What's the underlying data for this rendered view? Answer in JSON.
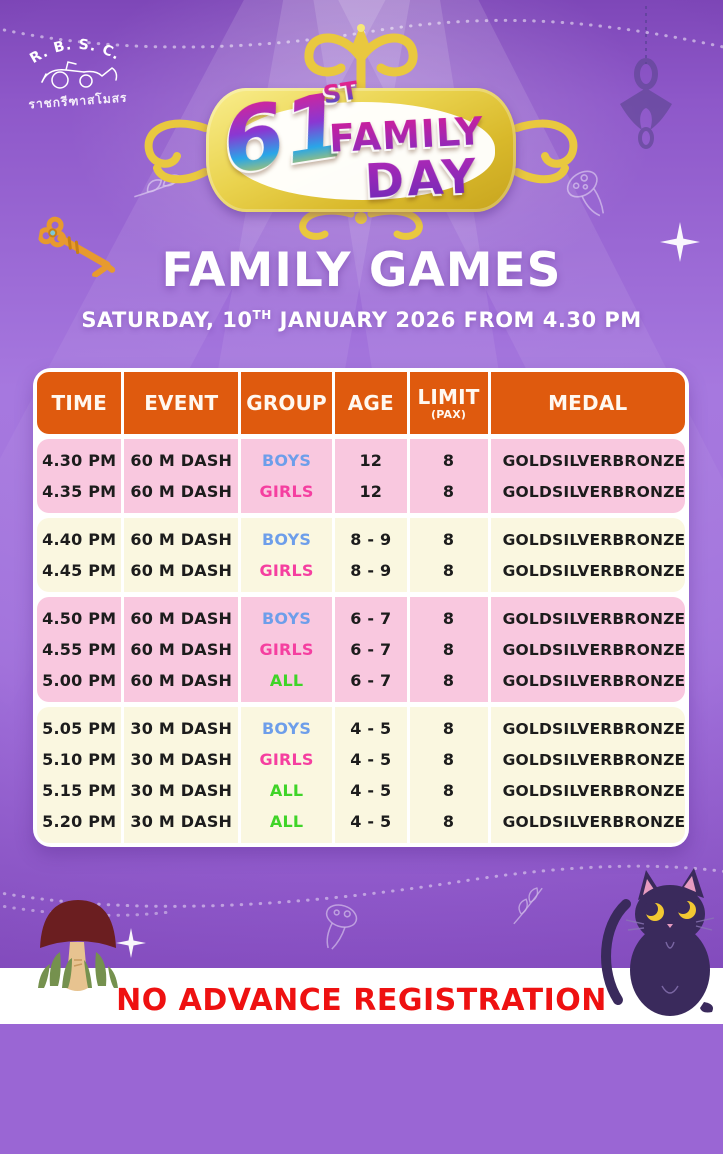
{
  "logo": {
    "acronym": "R. B. S. C.",
    "thai": "ราชกรีฑาสโมสร"
  },
  "banner": {
    "number": "61",
    "ordinal": "ST",
    "word1": "FAMILY",
    "word2": "DAY"
  },
  "header": {
    "title": "FAMILY GAMES",
    "date_prefix": "SATURDAY, 10",
    "date_sup": "TH",
    "date_suffix": " JANUARY 2026 FROM 4.30 PM"
  },
  "table": {
    "columns": [
      "TIME",
      "EVENT",
      "GROUP",
      "AGE",
      "LIMIT",
      "MEDAL"
    ],
    "limit_note": "(PAX)",
    "medals": [
      "GOLD",
      "SILVER",
      "BRONZE"
    ],
    "groups": [
      {
        "tone": "pink",
        "rows": [
          {
            "time": "4.30 PM",
            "event": "60 M DASH",
            "group": "BOYS",
            "group_class": "boys",
            "age": "12",
            "limit": "8"
          },
          {
            "time": "4.35 PM",
            "event": "60 M DASH",
            "group": "GIRLS",
            "group_class": "girls",
            "age": "12",
            "limit": "8"
          }
        ]
      },
      {
        "tone": "cream",
        "rows": [
          {
            "time": "4.40 PM",
            "event": "60 M DASH",
            "group": "BOYS",
            "group_class": "boys",
            "age": "8 - 9",
            "limit": "8"
          },
          {
            "time": "4.45 PM",
            "event": "60 M DASH",
            "group": "GIRLS",
            "group_class": "girls",
            "age": "8 - 9",
            "limit": "8"
          }
        ]
      },
      {
        "tone": "pink",
        "rows": [
          {
            "time": "4.50 PM",
            "event": "60 M DASH",
            "group": "BOYS",
            "group_class": "boys",
            "age": "6 - 7",
            "limit": "8"
          },
          {
            "time": "4.55 PM",
            "event": "60 M DASH",
            "group": "GIRLS",
            "group_class": "girls",
            "age": "6 - 7",
            "limit": "8"
          },
          {
            "time": "5.00 PM",
            "event": "60 M DASH",
            "group": "ALL",
            "group_class": "all",
            "age": "6 - 7",
            "limit": "8"
          }
        ]
      },
      {
        "tone": "cream",
        "rows": [
          {
            "time": "5.05 PM",
            "event": "30 M DASH",
            "group": "BOYS",
            "group_class": "boys",
            "age": "4 - 5",
            "limit": "8"
          },
          {
            "time": "5.10 PM",
            "event": "30 M DASH",
            "group": "GIRLS",
            "group_class": "girls",
            "age": "4 - 5",
            "limit": "8"
          },
          {
            "time": "5.15 PM",
            "event": "30 M DASH",
            "group": "ALL",
            "group_class": "all",
            "age": "4 - 5",
            "limit": "8"
          },
          {
            "time": "5.20 PM",
            "event": "30 M DASH",
            "group": "ALL",
            "group_class": "all",
            "age": "4 - 5",
            "limit": "8"
          }
        ]
      }
    ]
  },
  "footer": {
    "note": "NO ADVANCE REGISTRATION"
  },
  "colors": {
    "background_purple": "#A678DF",
    "header_orange": "#DF5A0E",
    "row_pink": "#F9C8DF",
    "row_cream": "#FAF7E0",
    "boys_blue": "#6D9EEA",
    "girls_pink": "#F53FA0",
    "all_green": "#3FD428",
    "note_red": "#EE1111",
    "gold_accent": "#E9C83F",
    "text_white": "#FFFFFF"
  }
}
